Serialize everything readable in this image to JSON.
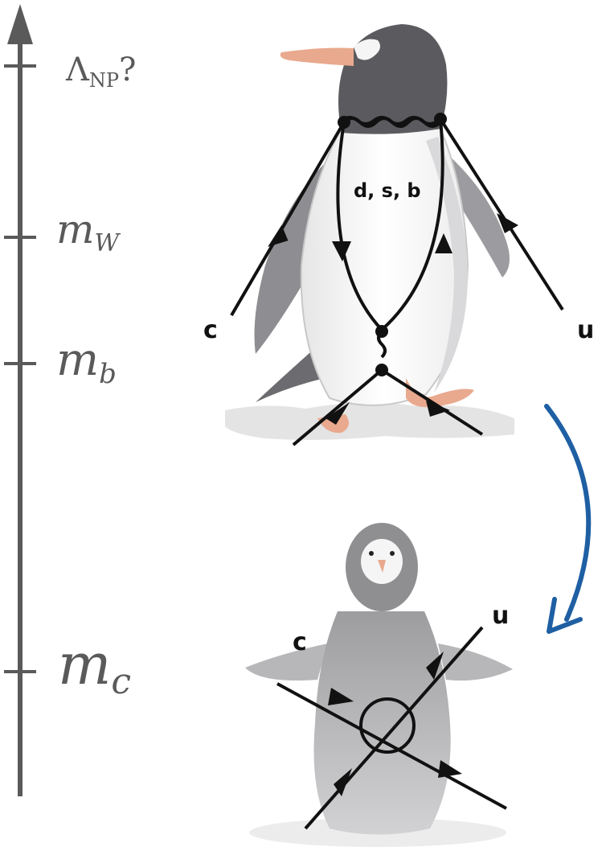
{
  "scale_axis": {
    "ticks": [
      {
        "id": "lambda-np",
        "label_main": "Λ",
        "label_sub": "NP",
        "label_suffix": "?"
      },
      {
        "id": "m-w",
        "label_main": "m",
        "label_sub": "W"
      },
      {
        "id": "m-b",
        "label_main": "m",
        "label_sub": "b"
      },
      {
        "id": "m-c",
        "label_main": "m",
        "label_sub": "c"
      }
    ]
  },
  "penguin_diagram": {
    "loop_label": "d, s, b",
    "incoming_label": "c",
    "outgoing_label": "u"
  },
  "effective_diagram": {
    "incoming_label": "c",
    "outgoing_label": "u"
  },
  "colors": {
    "axis": "#5a5a5a",
    "lines": "#111111",
    "flow_arrow": "#1f5fa3",
    "penguin_dark": "#5b5b5f",
    "penguin_light": "#f2f2f2",
    "penguin_grey": "#a9a9ab",
    "beak": "#e9a98e"
  },
  "icons": {
    "flow_arrow": "curved-arrow-icon",
    "adult_penguin": "penguin-icon",
    "chick_penguin": "penguin-chick-icon"
  }
}
